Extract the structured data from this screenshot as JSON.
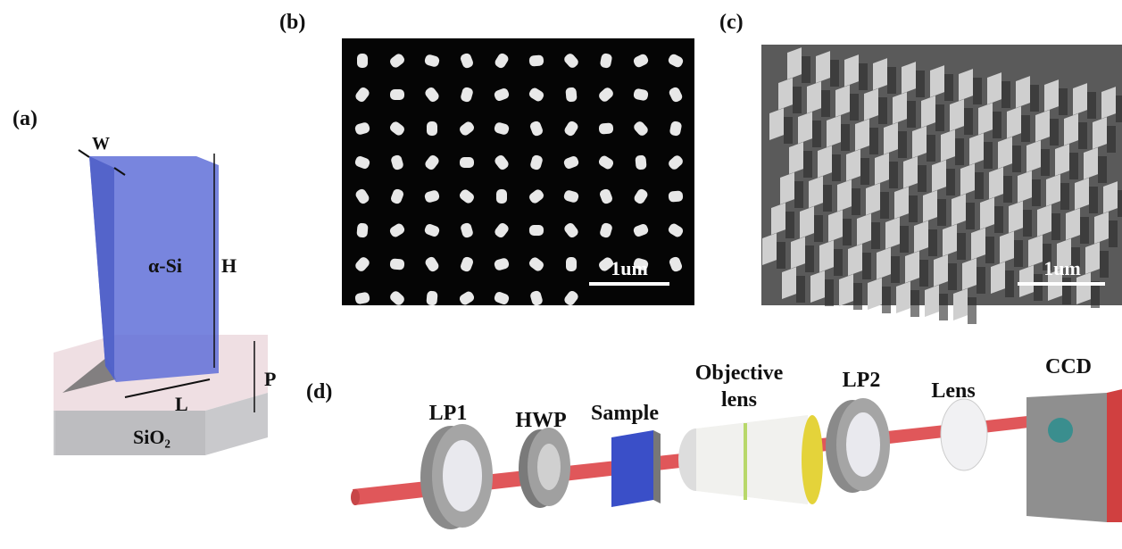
{
  "panel_a": {
    "label": "(a)",
    "width": "W",
    "height": "H",
    "length": "L",
    "period": "P",
    "pillar": "α-Si",
    "substrate": "SiO₂"
  },
  "panel_b": {
    "label": "(b)",
    "scale_bar": "1um"
  },
  "panel_c": {
    "label": "(c)",
    "scale_bar": "1um"
  },
  "panel_d": {
    "label": "(d)",
    "components": [
      "LP1",
      "HWP",
      "Sample",
      "Objective lens",
      "LP2",
      "Lens",
      "CCD"
    ]
  }
}
